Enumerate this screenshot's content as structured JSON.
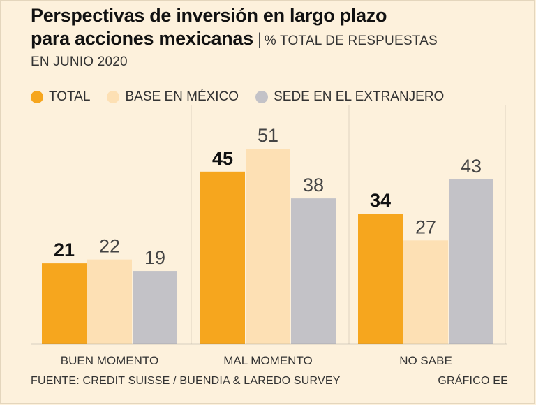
{
  "header": {
    "title_line1": "Perspectivas de inversión en largo plazo",
    "title_line2": "para acciones mexicanas",
    "separator": "|",
    "subtitle_part1": "% TOTAL DE RESPUESTAS",
    "subtitle_part2": "EN JUNIO 2020"
  },
  "footer": {
    "source": "FUENTE: CREDIT SUISSE / BUENDIA & LAREDO SURVEY",
    "credit": "GRÁFICO EE"
  },
  "chart_data": {
    "type": "bar",
    "title": "Perspectivas de inversión en largo plazo para acciones mexicanas",
    "subtitle": "% TOTAL DE RESPUESTAS EN JUNIO 2020",
    "categories": [
      "BUEN MOMENTO",
      "MAL MOMENTO",
      "NO SABE"
    ],
    "series": [
      {
        "name": "TOTAL",
        "color": "#f6a61e",
        "bold_labels": true,
        "values": [
          21,
          45,
          34
        ]
      },
      {
        "name": "BASE EN MÉXICO",
        "color": "#fde0b4",
        "bold_labels": false,
        "values": [
          22,
          51,
          27
        ]
      },
      {
        "name": "SEDE EN EL EXTRANJERO",
        "color": "#c3c2c7",
        "bold_labels": false,
        "values": [
          19,
          38,
          43
        ]
      }
    ],
    "ylim": [
      0,
      51
    ],
    "xlabel": "",
    "ylabel": "",
    "grid": false,
    "legend": "top-left"
  }
}
